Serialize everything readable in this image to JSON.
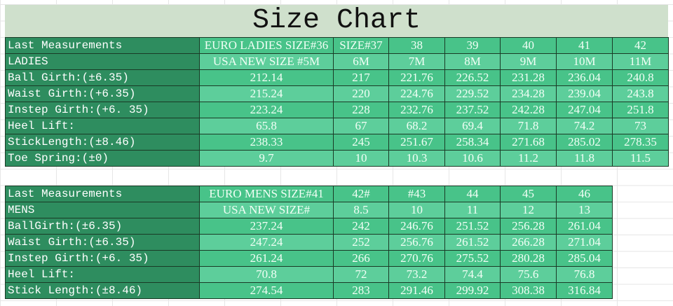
{
  "title": "Size Chart",
  "ladies": {
    "rows": [
      {
        "label": "Last Measurements",
        "values": [
          "EURO LADIES SIZE#36",
          "SIZE#37",
          "38",
          "39",
          "40",
          "41",
          "42"
        ]
      },
      {
        "label": "LADIES",
        "values": [
          "USA NEW SIZE #5M",
          "6M",
          "7M",
          "8M",
          "9M",
          "10M",
          "11M"
        ]
      },
      {
        "label": "Ball Girth:(±6.35)",
        "values": [
          "212.14",
          "217",
          "221.76",
          "226.52",
          "231.28",
          "236.04",
          "240.8"
        ]
      },
      {
        "label": "Waist Girth:(+6.35)",
        "values": [
          "215.24",
          "220",
          "224.76",
          "229.52",
          "234.28",
          "239.04",
          "243.8"
        ]
      },
      {
        "label": "Instep Girth:(+6. 35)",
        "values": [
          "223.24",
          "228",
          "232.76",
          "237.52",
          "242.28",
          "247.04",
          "251.8"
        ]
      },
      {
        "label": "Heel Lift:",
        "values": [
          "65.8",
          "67",
          "68.2",
          "69.4",
          "71.8",
          "74.2",
          "73"
        ]
      },
      {
        "label": "StickLength:(±8.46)",
        "values": [
          "238.33",
          "245",
          "251.67",
          "258.34",
          "271.68",
          "285.02",
          "278.35"
        ]
      },
      {
        "label": "Toe Spring:(±0)",
        "values": [
          "9.7",
          "10",
          "10.3",
          "10.6",
          "11.2",
          "11.8",
          "11.5"
        ]
      }
    ]
  },
  "mens": {
    "rows": [
      {
        "label": "Last Measurements",
        "values": [
          "EURO MENS SIZE#41",
          "42#",
          "#43",
          "44",
          "45",
          "46"
        ]
      },
      {
        "label": "MENS",
        "values": [
          "USA NEW SIZE#",
          "8.5",
          "10",
          "11",
          "12",
          "13"
        ]
      },
      {
        "label": "BallGirth:(±6.35)",
        "values": [
          "237.24",
          "242",
          "246.76",
          "251.52",
          "256.28",
          "261.04"
        ]
      },
      {
        "label": "Waist Girth:(±6.35)",
        "values": [
          "247.24",
          "252",
          "256.76",
          "261.52",
          "266.28",
          "271.04"
        ]
      },
      {
        "label": "Instep Girth:(+6. 35)",
        "values": [
          "261.24",
          "266",
          "270.76",
          "275.52",
          "280.28",
          "285.04"
        ]
      },
      {
        "label": "Heel Lift:",
        "values": [
          "70.8",
          "72",
          "73.2",
          "74.4",
          "75.6",
          "76.8"
        ]
      },
      {
        "label": "Stick Length:(±8.46)",
        "values": [
          "274.54",
          "283",
          "291.46",
          "299.92",
          "308.38",
          "316.84"
        ]
      }
    ]
  },
  "colors": {
    "title_band": "#cfe0cc",
    "label_cell": "#2e8d5f",
    "value_cell_dark": "#48c389",
    "value_cell_light": "#5dce9b"
  }
}
